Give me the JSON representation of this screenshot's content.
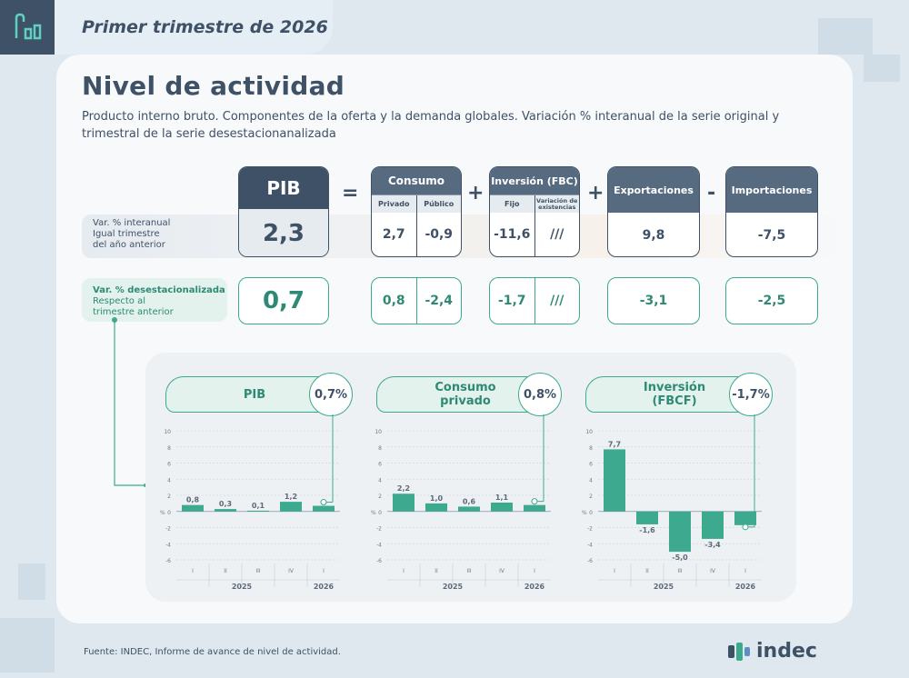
{
  "header": {
    "period": "Primer trimestre de 2026"
  },
  "title": "Nivel de actividad",
  "subtitle": "Producto interno bruto. Componentes de la oferta y la demanda globales. Variación % interanual de la serie original  y trimestral de la serie desestacionanalizada",
  "operators": {
    "eq": "=",
    "plus1": "+",
    "plus2": "+",
    "minus": "-"
  },
  "row_labels": {
    "interanual_1": "Var. % interanual",
    "interanual_2": "Igual trimestre",
    "interanual_3": "del año anterior",
    "desest_1": "Var. % desestacionalizada",
    "desest_2": "Respecto al",
    "desest_3": "trimestre anterior"
  },
  "pib": {
    "label": "PIB",
    "interanual": "2,3",
    "desest": "0,7"
  },
  "consumo": {
    "label": "Consumo",
    "sub1": "Privado",
    "sub2": "Público",
    "interanual": [
      "2,7",
      "-0,9"
    ],
    "desest": [
      "0,8",
      "-2,4"
    ]
  },
  "inversion": {
    "label": "Inversión (FBC)",
    "sub1": "Fijo",
    "sub2": "Variación de existencias",
    "interanual": [
      "-11,6",
      "///"
    ],
    "desest": [
      "-1,7",
      "///"
    ]
  },
  "exportaciones": {
    "label": "Exportaciones",
    "interanual": "9,8",
    "desest": "-3,1"
  },
  "importaciones": {
    "label": "Importaciones",
    "interanual": "-7,5",
    "desest": "-2,5"
  },
  "colors": {
    "navy": "#3f5166",
    "teal": "#3daa8f",
    "bar": "#3daa8f"
  },
  "chart_data": [
    {
      "type": "bar",
      "title": "PIB",
      "badge": "0,7%",
      "categories": [
        "I",
        "II",
        "III",
        "IV",
        "I"
      ],
      "years": [
        "2025",
        "2026"
      ],
      "values": [
        0.8,
        0.3,
        0.1,
        1.2,
        0.7
      ],
      "labels": [
        "0,8",
        "0,3",
        "0,1",
        "1,2",
        ""
      ],
      "ylim": [
        -6,
        10
      ],
      "yticks": [
        10,
        8,
        6,
        4,
        2,
        0,
        -2,
        -4,
        -6
      ],
      "ylabel": "%"
    },
    {
      "type": "bar",
      "title": "Consumo privado",
      "badge": "0,8%",
      "categories": [
        "I",
        "II",
        "III",
        "IV",
        "I"
      ],
      "years": [
        "2025",
        "2026"
      ],
      "values": [
        2.2,
        1.0,
        0.6,
        1.1,
        0.8
      ],
      "labels": [
        "2,2",
        "1,0",
        "0,6",
        "1,1",
        ""
      ],
      "ylim": [
        -6,
        10
      ],
      "yticks": [
        10,
        8,
        6,
        4,
        2,
        0,
        -2,
        -4,
        -6
      ],
      "ylabel": "%"
    },
    {
      "type": "bar",
      "title": "Inversión (FBCF)",
      "badge": "-1,7%",
      "categories": [
        "I",
        "II",
        "III",
        "IV",
        "I"
      ],
      "years": [
        "2025",
        "2026"
      ],
      "values": [
        7.7,
        -1.6,
        -5.0,
        -3.4,
        -1.7
      ],
      "labels": [
        "7,7",
        "-1,6",
        "-5,0",
        "-3,4",
        ""
      ],
      "ylim": [
        -6,
        10
      ],
      "yticks": [
        10,
        8,
        6,
        4,
        2,
        0,
        -2,
        -4,
        -6
      ],
      "ylabel": "%"
    }
  ],
  "chart_titles": {
    "c0": "PIB",
    "c1a": "Consumo",
    "c1b": "privado",
    "c2a": "Inversión",
    "c2b": "(FBCF)"
  },
  "footer": "Fuente: INDEC, Informe de avance de nivel de actividad.",
  "brand": "indec"
}
